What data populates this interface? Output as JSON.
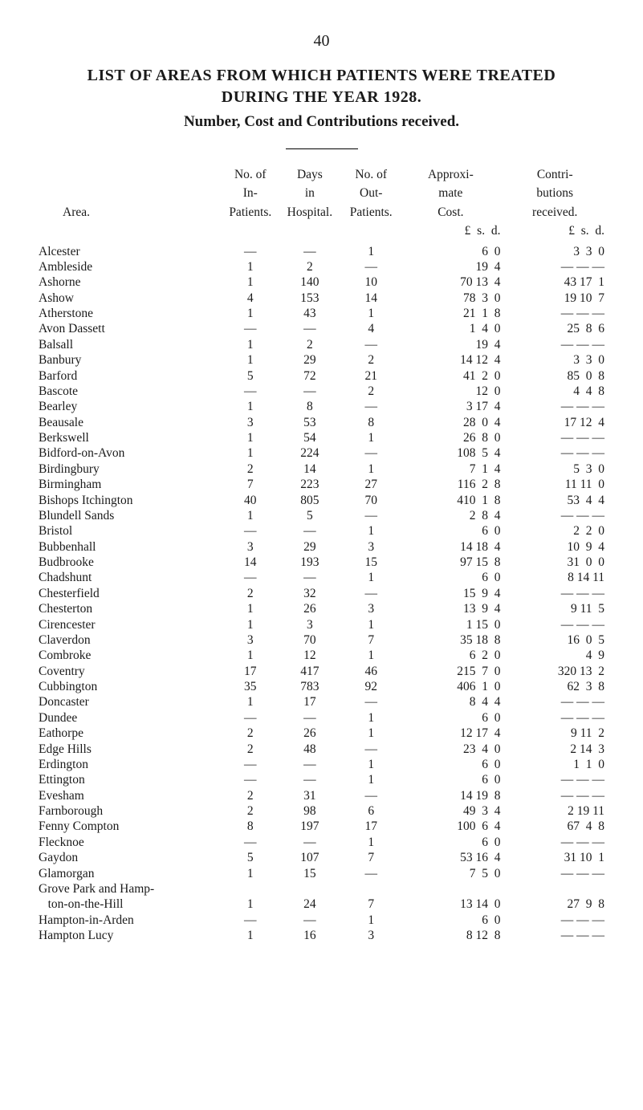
{
  "page_number": "40",
  "title_lines": [
    "LIST OF AREAS FROM WHICH PATIENTS WERE TREATED",
    "DURING THE YEAR 1928."
  ],
  "subtitle": "Number, Cost and Contributions received.",
  "headers": {
    "area": "Area.",
    "no_in": [
      "No. of",
      "In-",
      "Patients."
    ],
    "days": [
      "Days",
      "in",
      "Hospital."
    ],
    "out": [
      "No. of",
      "Out-",
      "Patients."
    ],
    "cost": [
      "Approxi-",
      "mate",
      "Cost."
    ],
    "contrib": [
      "Contri-",
      "butions",
      "received."
    ]
  },
  "lsd": {
    "cost": "£  s.  d.",
    "contrib": "£  s.  d."
  },
  "rows": [
    {
      "area": "Alcester",
      "in": "—",
      "days": "—",
      "out": "1",
      "cost": "6  0",
      "contrib": "3  3  0"
    },
    {
      "area": "Ambleside",
      "in": "1",
      "days": "2",
      "out": "—",
      "cost": "19  4",
      "contrib": "— — —"
    },
    {
      "area": "Ashorne",
      "in": "1",
      "days": "140",
      "out": "10",
      "cost": "70 13  4",
      "contrib": "43 17  1"
    },
    {
      "area": "Ashow",
      "in": "4",
      "days": "153",
      "out": "14",
      "cost": "78  3  0",
      "contrib": "19 10  7"
    },
    {
      "area": "Atherstone",
      "in": "1",
      "days": "43",
      "out": "1",
      "cost": "21  1  8",
      "contrib": "— — —"
    },
    {
      "area": "Avon Dassett",
      "in": "—",
      "days": "—",
      "out": "4",
      "cost": "1  4  0",
      "contrib": "25  8  6"
    },
    {
      "area": "Balsall",
      "in": "1",
      "days": "2",
      "out": "—",
      "cost": "19  4",
      "contrib": "— — —"
    },
    {
      "area": "Banbury",
      "in": "1",
      "days": "29",
      "out": "2",
      "cost": "14 12  4",
      "contrib": "3  3  0"
    },
    {
      "area": "Barford",
      "in": "5",
      "days": "72",
      "out": "21",
      "cost": "41  2  0",
      "contrib": "85  0  8"
    },
    {
      "area": "Bascote",
      "in": "—",
      "days": "—",
      "out": "2",
      "cost": "12  0",
      "contrib": "4  4  8"
    },
    {
      "area": "Bearley",
      "in": "1",
      "days": "8",
      "out": "—",
      "cost": "3 17  4",
      "contrib": "— — —"
    },
    {
      "area": "Beausale",
      "in": "3",
      "days": "53",
      "out": "8",
      "cost": "28  0  4",
      "contrib": "17 12  4"
    },
    {
      "area": "Berkswell",
      "in": "1",
      "days": "54",
      "out": "1",
      "cost": "26  8  0",
      "contrib": "— — —"
    },
    {
      "area": "Bidford-on-Avon",
      "in": "1",
      "days": "224",
      "out": "—",
      "cost": "108  5  4",
      "contrib": "— — —"
    },
    {
      "area": "Birdingbury",
      "in": "2",
      "days": "14",
      "out": "1",
      "cost": "7  1  4",
      "contrib": "5  3  0"
    },
    {
      "area": "Birmingham",
      "in": "7",
      "days": "223",
      "out": "27",
      "cost": "116  2  8",
      "contrib": "11 11  0"
    },
    {
      "area": "Bishops Itchington",
      "in": "40",
      "days": "805",
      "out": "70",
      "cost": "410  1  8",
      "contrib": "53  4  4"
    },
    {
      "area": "Blundell Sands",
      "in": "1",
      "days": "5",
      "out": "—",
      "cost": "2  8  4",
      "contrib": "— — —"
    },
    {
      "area": "Bristol",
      "in": "—",
      "days": "—",
      "out": "1",
      "cost": "6  0",
      "contrib": "2  2  0"
    },
    {
      "area": "Bubbenhall",
      "in": "3",
      "days": "29",
      "out": "3",
      "cost": "14 18  4",
      "contrib": "10  9  4"
    },
    {
      "area": "Budbrooke",
      "in": "14",
      "days": "193",
      "out": "15",
      "cost": "97 15  8",
      "contrib": "31  0  0"
    },
    {
      "area": "Chadshunt",
      "in": "—",
      "days": "—",
      "out": "1",
      "cost": "6  0",
      "contrib": "8 14 11"
    },
    {
      "area": "Chesterfield",
      "in": "2",
      "days": "32",
      "out": "—",
      "cost": "15  9  4",
      "contrib": "— — —"
    },
    {
      "area": "Chesterton",
      "in": "1",
      "days": "26",
      "out": "3",
      "cost": "13  9  4",
      "contrib": "9 11  5"
    },
    {
      "area": "Cirencester",
      "in": "1",
      "days": "3",
      "out": "1",
      "cost": "1 15  0",
      "contrib": "— — —"
    },
    {
      "area": "Claverdon",
      "in": "3",
      "days": "70",
      "out": "7",
      "cost": "35 18  8",
      "contrib": "16  0  5"
    },
    {
      "area": "Combroke",
      "in": "1",
      "days": "12",
      "out": "1",
      "cost": "6  2  0",
      "contrib": "4  9"
    },
    {
      "area": "Coventry",
      "in": "17",
      "days": "417",
      "out": "46",
      "cost": "215  7  0",
      "contrib": "320 13  2"
    },
    {
      "area": "Cubbington",
      "in": "35",
      "days": "783",
      "out": "92",
      "cost": "406  1  0",
      "contrib": "62  3  8"
    },
    {
      "area": "Doncaster",
      "in": "1",
      "days": "17",
      "out": "—",
      "cost": "8  4  4",
      "contrib": "— — —"
    },
    {
      "area": "Dundee",
      "in": "—",
      "days": "—",
      "out": "1",
      "cost": "6  0",
      "contrib": "— — —"
    },
    {
      "area": "Eathorpe",
      "in": "2",
      "days": "26",
      "out": "1",
      "cost": "12 17  4",
      "contrib": "9 11  2"
    },
    {
      "area": "Edge Hills",
      "in": "2",
      "days": "48",
      "out": "—",
      "cost": "23  4  0",
      "contrib": "2 14  3"
    },
    {
      "area": "Erdington",
      "in": "—",
      "days": "—",
      "out": "1",
      "cost": "6  0",
      "contrib": "1  1  0"
    },
    {
      "area": "Ettington",
      "in": "—",
      "days": "—",
      "out": "1",
      "cost": "6  0",
      "contrib": "— — —"
    },
    {
      "area": "Evesham",
      "in": "2",
      "days": "31",
      "out": "—",
      "cost": "14 19  8",
      "contrib": "— — —"
    },
    {
      "area": "Farnborough",
      "in": "2",
      "days": "98",
      "out": "6",
      "cost": "49  3  4",
      "contrib": "2 19 11"
    },
    {
      "area": "Fenny Compton",
      "in": "8",
      "days": "197",
      "out": "17",
      "cost": "100  6  4",
      "contrib": "67  4  8"
    },
    {
      "area": "Flecknoe",
      "in": "—",
      "days": "—",
      "out": "1",
      "cost": "6  0",
      "contrib": "— — —"
    },
    {
      "area": "Gaydon",
      "in": "5",
      "days": "107",
      "out": "7",
      "cost": "53 16  4",
      "contrib": "31 10  1"
    },
    {
      "area": "Glamorgan",
      "in": "1",
      "days": "15",
      "out": "—",
      "cost": "7  5  0",
      "contrib": "— — —"
    },
    {
      "area": "Grove Park and Hamp-",
      "in": "",
      "days": "",
      "out": "",
      "cost": "",
      "contrib": ""
    },
    {
      "area": "   ton-on-the-Hill",
      "in": "1",
      "days": "24",
      "out": "7",
      "cost": "13 14  0",
      "contrib": "27  9  8"
    },
    {
      "area": "Hampton-in-Arden",
      "in": "—",
      "days": "—",
      "out": "1",
      "cost": "6  0",
      "contrib": "— — —"
    },
    {
      "area": "Hampton Lucy",
      "in": "1",
      "days": "16",
      "out": "3",
      "cost": "8 12  8",
      "contrib": "— — —"
    }
  ]
}
